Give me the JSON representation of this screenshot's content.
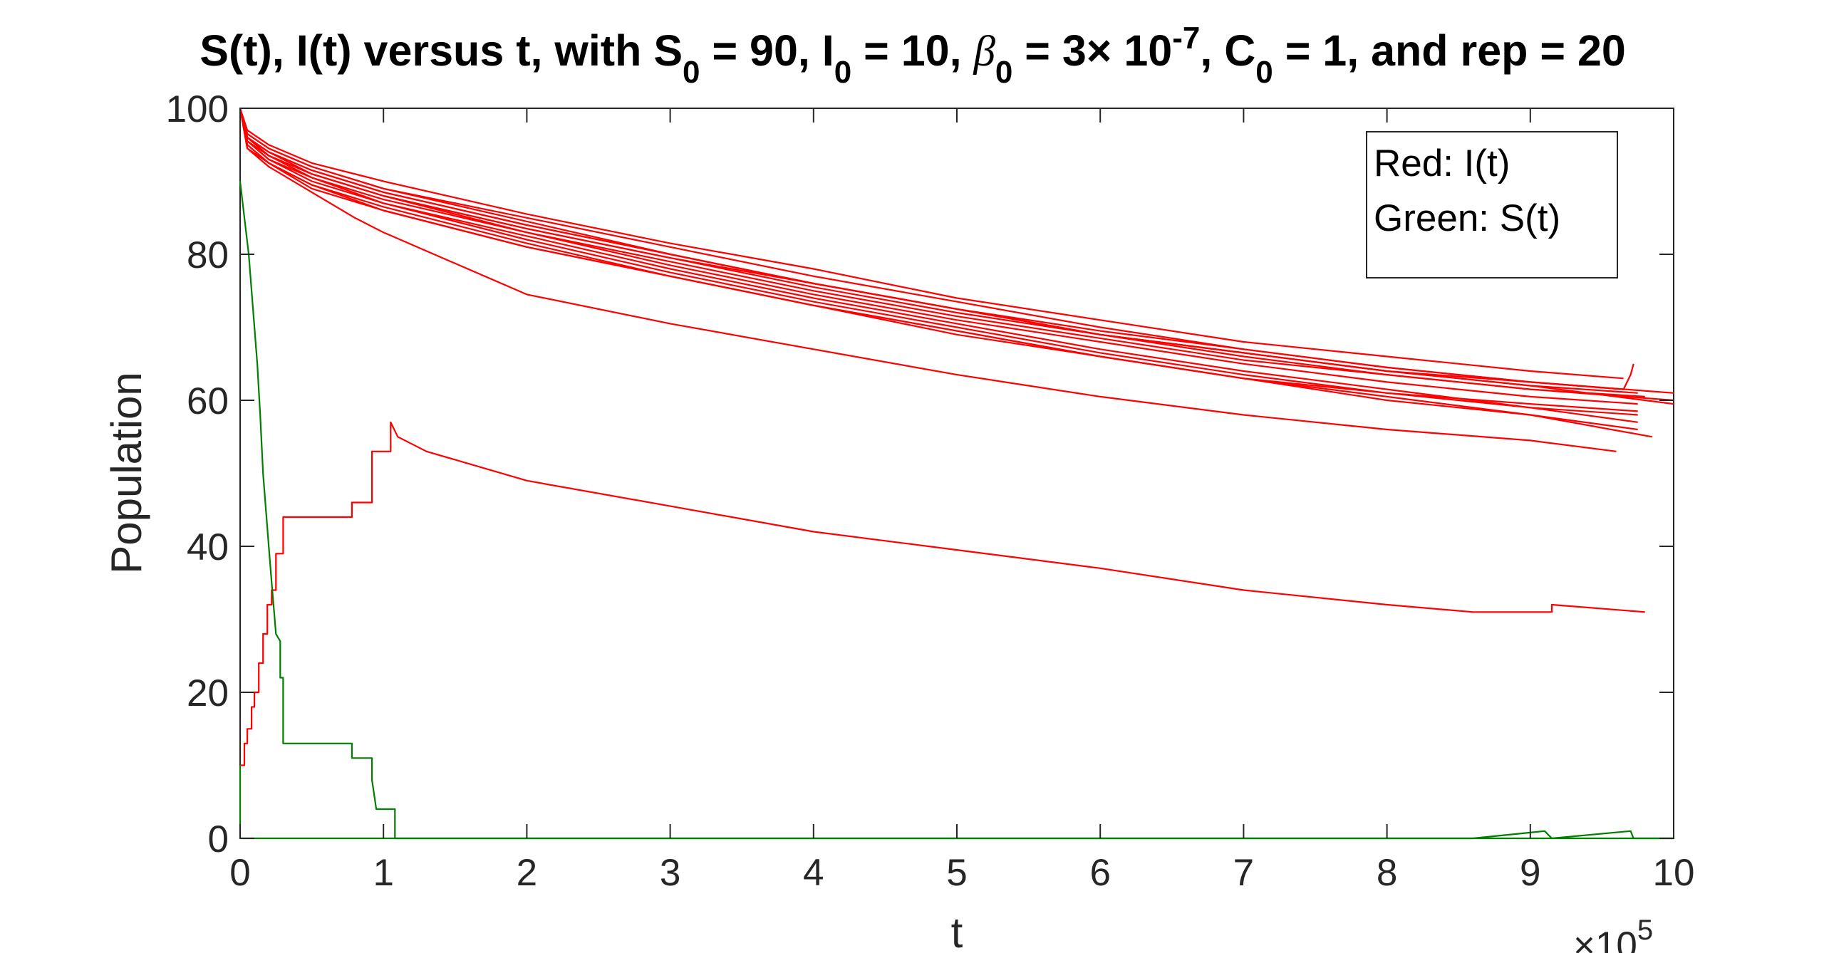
{
  "chart_data": {
    "type": "line",
    "title": {
      "part1": "S(t), I(t) versus t, with S",
      "s_sub": "0",
      "part2": " = 90, I",
      "i_sub": "0",
      "part3": " = 10, ",
      "beta_symbol": "β",
      "beta_sub": "0",
      "part4": " = 3× 10",
      "exp": "-7",
      "part5": ", C",
      "c_sub": "0",
      "part6": " = 1, and rep = 20"
    },
    "xlabel": "t",
    "ylabel": "Population",
    "x_multiplier": {
      "base": "×10",
      "exp": "5"
    },
    "xlim": [
      0,
      10
    ],
    "ylim": [
      0,
      100
    ],
    "xticks": [
      "0",
      "1",
      "2",
      "3",
      "4",
      "5",
      "6",
      "7",
      "8",
      "9",
      "10"
    ],
    "yticks": [
      "0",
      "20",
      "40",
      "60",
      "80",
      "100"
    ],
    "xtick_values": [
      0,
      1,
      2,
      3,
      4,
      5,
      6,
      7,
      8,
      9,
      10
    ],
    "ytick_values": [
      0,
      20,
      40,
      60,
      80,
      100
    ],
    "grid": false,
    "legend": {
      "placement": "top-right",
      "entries": [
        "Red: I(t)",
        "Green: S(t)"
      ]
    },
    "colors": {
      "infected": "#ff0000",
      "susceptible": "#007f00",
      "axes": "#262626"
    },
    "series": [
      {
        "group": "I",
        "points": [
          [
            0,
            100
          ],
          [
            0.05,
            97
          ],
          [
            0.2,
            95
          ],
          [
            0.5,
            92.5
          ],
          [
            1,
            90
          ],
          [
            2,
            85.5
          ],
          [
            3,
            81.5
          ],
          [
            4,
            78
          ],
          [
            5,
            74
          ],
          [
            6,
            71
          ],
          [
            7,
            68
          ],
          [
            8,
            66
          ],
          [
            9,
            64
          ],
          [
            9.65,
            63
          ]
        ]
      },
      {
        "group": "I",
        "points": [
          [
            0,
            100
          ],
          [
            0.05,
            96.5
          ],
          [
            0.2,
            94.5
          ],
          [
            0.5,
            92
          ],
          [
            1,
            89
          ],
          [
            2,
            85
          ],
          [
            3,
            81
          ],
          [
            4,
            77
          ],
          [
            5,
            73.5
          ],
          [
            6,
            70
          ],
          [
            7,
            67
          ],
          [
            8,
            64.5
          ],
          [
            9,
            62.5
          ],
          [
            9.65,
            61.5
          ]
        ]
      },
      {
        "group": "I",
        "points": [
          [
            0,
            100
          ],
          [
            0.05,
            96.5
          ],
          [
            0.2,
            94.5
          ],
          [
            0.5,
            92
          ],
          [
            1,
            89
          ],
          [
            2,
            84.5
          ],
          [
            3,
            80
          ],
          [
            4,
            76
          ],
          [
            5,
            72.5
          ],
          [
            6,
            69
          ],
          [
            7,
            66
          ],
          [
            8,
            63.5
          ],
          [
            9,
            61.5
          ],
          [
            9.8,
            60.5
          ]
        ]
      },
      {
        "group": "I",
        "points": [
          [
            0,
            100
          ],
          [
            0.05,
            96
          ],
          [
            0.2,
            94
          ],
          [
            0.5,
            91.5
          ],
          [
            1,
            88.5
          ],
          [
            2,
            84
          ],
          [
            3,
            80
          ],
          [
            4,
            76
          ],
          [
            5,
            72.5
          ],
          [
            6,
            69
          ],
          [
            7,
            66.5
          ],
          [
            8,
            64
          ],
          [
            9,
            62
          ],
          [
            9.75,
            61
          ]
        ]
      },
      {
        "group": "I",
        "points": [
          [
            0,
            100
          ],
          [
            0.05,
            96
          ],
          [
            0.2,
            94
          ],
          [
            0.5,
            91.5
          ],
          [
            1,
            88.5
          ],
          [
            2,
            84
          ],
          [
            3,
            80
          ],
          [
            4,
            76
          ],
          [
            5,
            72.5
          ],
          [
            6,
            69
          ],
          [
            7,
            66.5
          ],
          [
            8,
            64
          ],
          [
            9,
            62.5
          ],
          [
            9.65,
            61.5
          ],
          [
            9.7,
            63.5
          ],
          [
            9.72,
            65
          ]
        ]
      },
      {
        "group": "I",
        "points": [
          [
            0,
            100
          ],
          [
            0.05,
            96
          ],
          [
            0.2,
            94
          ],
          [
            0.5,
            91
          ],
          [
            1,
            88
          ],
          [
            2,
            83.5
          ],
          [
            3,
            79.5
          ],
          [
            4,
            76
          ],
          [
            5,
            72.5
          ],
          [
            6,
            69.5
          ],
          [
            7,
            67
          ],
          [
            8,
            64.5
          ],
          [
            9,
            62.5
          ],
          [
            10,
            61
          ]
        ]
      },
      {
        "group": "I",
        "points": [
          [
            0,
            100
          ],
          [
            0.05,
            96
          ],
          [
            0.2,
            93.5
          ],
          [
            0.5,
            91
          ],
          [
            1,
            88
          ],
          [
            2,
            83.5
          ],
          [
            3,
            79.5
          ],
          [
            4,
            75.5
          ],
          [
            5,
            72
          ],
          [
            6,
            69
          ],
          [
            7,
            66.5
          ],
          [
            8,
            64
          ],
          [
            9,
            62
          ],
          [
            10,
            59.5
          ]
        ]
      },
      {
        "group": "I",
        "points": [
          [
            0,
            100
          ],
          [
            0.05,
            96
          ],
          [
            0.2,
            93.5
          ],
          [
            0.5,
            91
          ],
          [
            1,
            88
          ],
          [
            2,
            83
          ],
          [
            3,
            79
          ],
          [
            4,
            75
          ],
          [
            5,
            71.5
          ],
          [
            6,
            68.5
          ],
          [
            7,
            65.5
          ],
          [
            8,
            63.5
          ],
          [
            9,
            61.5
          ],
          [
            10,
            60
          ]
        ]
      },
      {
        "group": "I",
        "points": [
          [
            0,
            100
          ],
          [
            0.05,
            95.5
          ],
          [
            0.2,
            93.5
          ],
          [
            0.5,
            90.5
          ],
          [
            1,
            87.5
          ],
          [
            2,
            83
          ],
          [
            3,
            78.5
          ],
          [
            4,
            74.5
          ],
          [
            5,
            71
          ],
          [
            6,
            68
          ],
          [
            7,
            65
          ],
          [
            8,
            62.5
          ],
          [
            9,
            60.5
          ],
          [
            9.75,
            59.5
          ]
        ]
      },
      {
        "group": "I",
        "points": [
          [
            0,
            100
          ],
          [
            0.05,
            95.5
          ],
          [
            0.2,
            93
          ],
          [
            0.5,
            90.5
          ],
          [
            1,
            87
          ],
          [
            2,
            82.5
          ],
          [
            3,
            78
          ],
          [
            4,
            74
          ],
          [
            5,
            70.5
          ],
          [
            6,
            67
          ],
          [
            7,
            64
          ],
          [
            8,
            61.5
          ],
          [
            9,
            59
          ],
          [
            9.75,
            58
          ]
        ]
      },
      {
        "group": "I",
        "points": [
          [
            0,
            100
          ],
          [
            0.05,
            95.5
          ],
          [
            0.2,
            93
          ],
          [
            0.5,
            90
          ],
          [
            1,
            87
          ],
          [
            2,
            82
          ],
          [
            3,
            77.5
          ],
          [
            4,
            73.5
          ],
          [
            5,
            70
          ],
          [
            6,
            66.5
          ],
          [
            7,
            63.5
          ],
          [
            8,
            61
          ],
          [
            9,
            59
          ],
          [
            9.75,
            57
          ]
        ]
      },
      {
        "group": "I",
        "points": [
          [
            0,
            100
          ],
          [
            0.05,
            95
          ],
          [
            0.2,
            92.5
          ],
          [
            0.5,
            89.5
          ],
          [
            1,
            86.5
          ],
          [
            2,
            81.5
          ],
          [
            3,
            77
          ],
          [
            4,
            73
          ],
          [
            5,
            69.5
          ],
          [
            6,
            66
          ],
          [
            7,
            63
          ],
          [
            8,
            60.5
          ],
          [
            9,
            58
          ],
          [
            9.85,
            55
          ]
        ]
      },
      {
        "group": "I",
        "points": [
          [
            0,
            100
          ],
          [
            0.05,
            95
          ],
          [
            0.2,
            92.5
          ],
          [
            0.5,
            89.5
          ],
          [
            1,
            86
          ],
          [
            2,
            81
          ],
          [
            3,
            77
          ],
          [
            4,
            73
          ],
          [
            5,
            69
          ],
          [
            6,
            66
          ],
          [
            7,
            63
          ],
          [
            8,
            60
          ],
          [
            9,
            58
          ],
          [
            9.75,
            56
          ]
        ]
      },
      {
        "group": "I",
        "points": [
          [
            0,
            100
          ],
          [
            0.05,
            94.5
          ],
          [
            0.2,
            92
          ],
          [
            0.5,
            88.5
          ],
          [
            0.8,
            85
          ],
          [
            1,
            83
          ],
          [
            2,
            74.5
          ],
          [
            3,
            70.5
          ],
          [
            4,
            67
          ],
          [
            5,
            63.5
          ],
          [
            6,
            60.5
          ],
          [
            7,
            58
          ],
          [
            8,
            56
          ],
          [
            9,
            54.5
          ],
          [
            9.6,
            53
          ]
        ]
      },
      {
        "group": "I",
        "points": [
          [
            0,
            100
          ],
          [
            0.05,
            94.5
          ],
          [
            0.2,
            92.5
          ],
          [
            0.5,
            89
          ],
          [
            1,
            86
          ],
          [
            2,
            81
          ],
          [
            3,
            77
          ],
          [
            4,
            73
          ],
          [
            5,
            69.5
          ],
          [
            6,
            66
          ],
          [
            7,
            63
          ],
          [
            8,
            61
          ],
          [
            9,
            59.5
          ],
          [
            9.75,
            58.5
          ]
        ]
      },
      {
        "group": "I",
        "points": [
          [
            0,
            10
          ],
          [
            0.03,
            10
          ],
          [
            0.03,
            13
          ],
          [
            0.05,
            13
          ],
          [
            0.05,
            15
          ],
          [
            0.08,
            15
          ],
          [
            0.08,
            18
          ],
          [
            0.1,
            18
          ],
          [
            0.1,
            20
          ],
          [
            0.13,
            20
          ],
          [
            0.13,
            24
          ],
          [
            0.16,
            24
          ],
          [
            0.16,
            28
          ],
          [
            0.19,
            28
          ],
          [
            0.19,
            32
          ],
          [
            0.22,
            32
          ],
          [
            0.22,
            34
          ],
          [
            0.25,
            34
          ],
          [
            0.25,
            39
          ],
          [
            0.3,
            39
          ],
          [
            0.3,
            44
          ],
          [
            0.78,
            44
          ],
          [
            0.78,
            46
          ],
          [
            0.92,
            46
          ],
          [
            0.92,
            53
          ],
          [
            1.05,
            53
          ],
          [
            1.05,
            57
          ],
          [
            1.1,
            55
          ],
          [
            1.3,
            53
          ],
          [
            2,
            49
          ],
          [
            3,
            45.5
          ],
          [
            4,
            42
          ],
          [
            5,
            39.5
          ],
          [
            6,
            37
          ],
          [
            7,
            34
          ],
          [
            8,
            32
          ],
          [
            8.6,
            31
          ],
          [
            9.15,
            31
          ],
          [
            9.15,
            32
          ],
          [
            9.8,
            31
          ]
        ]
      },
      {
        "group": "S",
        "points": [
          [
            0,
            90
          ],
          [
            0.03,
            85
          ],
          [
            0.06,
            80
          ],
          [
            0.08,
            75
          ],
          [
            0.1,
            70
          ],
          [
            0.12,
            65
          ],
          [
            0.14,
            58
          ],
          [
            0.16,
            50
          ],
          [
            0.18,
            45
          ],
          [
            0.2,
            40
          ],
          [
            0.22,
            35
          ],
          [
            0.25,
            28
          ],
          [
            0.28,
            27
          ],
          [
            0.28,
            22
          ],
          [
            0.3,
            22
          ],
          [
            0.3,
            18
          ],
          [
            0.3,
            13
          ],
          [
            0.78,
            13
          ],
          [
            0.78,
            11
          ],
          [
            0.92,
            11
          ],
          [
            0.92,
            8
          ],
          [
            0.95,
            4
          ],
          [
            1.08,
            4
          ],
          [
            1.08,
            0
          ],
          [
            8.6,
            0
          ],
          [
            9.1,
            1
          ],
          [
            9.15,
            0
          ],
          [
            9.7,
            1
          ],
          [
            9.72,
            0
          ],
          [
            10,
            0
          ]
        ]
      },
      {
        "group": "S",
        "points": [
          [
            0,
            10
          ],
          [
            0,
            0
          ],
          [
            10,
            0
          ]
        ]
      }
    ]
  }
}
